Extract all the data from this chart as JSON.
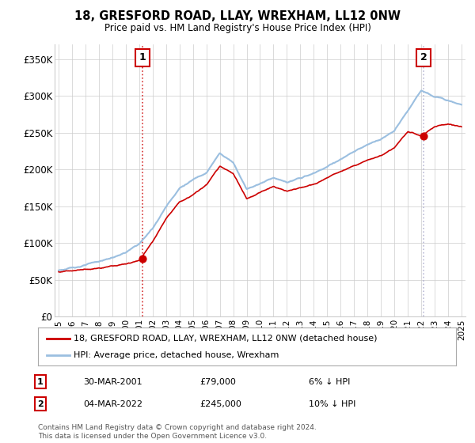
{
  "title": "18, GRESFORD ROAD, LLAY, WREXHAM, LL12 0NW",
  "subtitle": "Price paid vs. HM Land Registry's House Price Index (HPI)",
  "ylabel_ticks": [
    "£0",
    "£50K",
    "£100K",
    "£150K",
    "£200K",
    "£250K",
    "£300K",
    "£350K"
  ],
  "ytick_values": [
    0,
    50000,
    100000,
    150000,
    200000,
    250000,
    300000,
    350000
  ],
  "ylim": [
    0,
    370000
  ],
  "xlim_start": 1994.7,
  "xlim_end": 2025.3,
  "transaction1": {
    "date_x": 2001.24,
    "price": 79000,
    "label": "1",
    "date_str": "30-MAR-2001",
    "price_str": "£79,000",
    "hpi_str": "6% ↓ HPI"
  },
  "transaction2": {
    "date_x": 2022.17,
    "price": 245000,
    "label": "2",
    "date_str": "04-MAR-2022",
    "price_str": "£245,000",
    "hpi_str": "10% ↓ HPI"
  },
  "line1_label": "18, GRESFORD ROAD, LLAY, WREXHAM, LL12 0NW (detached house)",
  "line2_label": "HPI: Average price, detached house, Wrexham",
  "footer": "Contains HM Land Registry data © Crown copyright and database right 2024.\nThis data is licensed under the Open Government Licence v3.0.",
  "hpi_color": "#9bbfe0",
  "price_color": "#cc0000",
  "vline1_color": "#cc0000",
  "vline2_color": "#aaaacc",
  "grid_color": "#cccccc",
  "bg_color": "#ffffff",
  "box_color": "#cc0000",
  "hpi_xpoints": [
    1995,
    1996,
    1997,
    1998,
    1999,
    2000,
    2001,
    2002,
    2003,
    2004,
    2005,
    2006,
    2007,
    2008,
    2009,
    2010,
    2011,
    2012,
    2013,
    2014,
    2015,
    2016,
    2017,
    2018,
    2019,
    2020,
    2021,
    2022,
    2023,
    2024,
    2025
  ],
  "hpi_ypoints": [
    63000,
    66000,
    70000,
    74000,
    79000,
    86000,
    97000,
    118000,
    148000,
    174000,
    185000,
    196000,
    222000,
    210000,
    175000,
    183000,
    192000,
    185000,
    190000,
    196000,
    205000,
    215000,
    224000,
    232000,
    240000,
    252000,
    278000,
    305000,
    295000,
    292000,
    288000
  ],
  "price_xpoints": [
    1995,
    1996,
    1997,
    1998,
    1999,
    2000,
    2001,
    2002,
    2003,
    2004,
    2005,
    2006,
    2007,
    2008,
    2009,
    2010,
    2011,
    2012,
    2013,
    2014,
    2015,
    2016,
    2017,
    2018,
    2019,
    2020,
    2021,
    2022,
    2023,
    2024,
    2025
  ],
  "price_ypoints": [
    61000,
    63000,
    65000,
    67000,
    70000,
    73000,
    79000,
    105000,
    138000,
    160000,
    170000,
    183000,
    208000,
    198000,
    163000,
    172000,
    180000,
    174000,
    178000,
    183000,
    191000,
    200000,
    208000,
    215000,
    220000,
    230000,
    250000,
    245000,
    258000,
    262000,
    258000
  ]
}
